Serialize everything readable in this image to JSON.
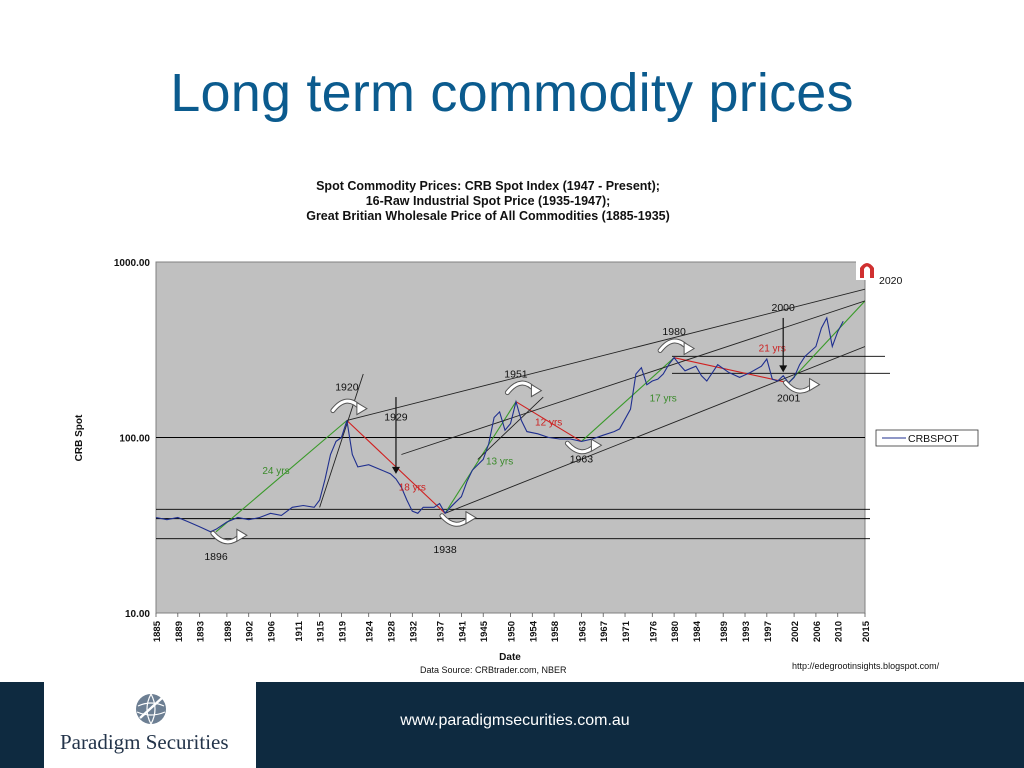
{
  "slide": {
    "title": "Long term commodity prices"
  },
  "chart_data": {
    "type": "line",
    "title_lines": [
      "Spot Commodity Prices:  CRB Spot Index (1947 - Present);",
      "16-Raw Industrial Spot Price (1935-1947);",
      "Great Britian Wholesale Price of All Commodities (1885-1935)"
    ],
    "xlabel": "Date",
    "ylabel": "CRB Spot",
    "y_scale": "log",
    "ylim": [
      10,
      1000
    ],
    "xlim": [
      1885,
      2015
    ],
    "y_ticks": [
      "10.00",
      "100.00",
      "1000.00"
    ],
    "x_ticks": [
      "1885",
      "1889",
      "1893",
      "1898",
      "1902",
      "1906",
      "1911",
      "1915",
      "1919",
      "1924",
      "1928",
      "1932",
      "1937",
      "1941",
      "1945",
      "1950",
      "1954",
      "1958",
      "1963",
      "1967",
      "1971",
      "1976",
      "1980",
      "1984",
      "1989",
      "1993",
      "1997",
      "2002",
      "2006",
      "2010",
      "2015"
    ],
    "legend": {
      "label": "CRBSPOT",
      "position": "right"
    },
    "series": [
      {
        "name": "CRBSPOT",
        "color": "#1f2f8f",
        "x": [
          1885,
          1887,
          1889,
          1891,
          1893,
          1895,
          1896,
          1898,
          1900,
          1902,
          1904,
          1906,
          1908,
          1910,
          1912,
          1914,
          1915,
          1916,
          1917,
          1918,
          1919,
          1920,
          1921,
          1922,
          1924,
          1926,
          1928,
          1929,
          1930,
          1931,
          1932,
          1933,
          1934,
          1936,
          1937,
          1938,
          1939,
          1940,
          1941,
          1942,
          1943,
          1944,
          1945,
          1946,
          1947,
          1948,
          1949,
          1950,
          1951,
          1952,
          1953,
          1955,
          1957,
          1959,
          1961,
          1963,
          1965,
          1967,
          1969,
          1970,
          1972,
          1973,
          1974,
          1975,
          1976,
          1977,
          1978,
          1979,
          1980,
          1981,
          1982,
          1984,
          1985,
          1986,
          1988,
          1990,
          1992,
          1994,
          1996,
          1997,
          1998,
          1999,
          2000,
          2001,
          2002,
          2003,
          2004,
          2006,
          2007,
          2008,
          2009,
          2010,
          2011
        ],
        "y": [
          35,
          34,
          35,
          33,
          31,
          29,
          30,
          33,
          35,
          34,
          35,
          37,
          36,
          40,
          41,
          40,
          44,
          58,
          80,
          95,
          100,
          125,
          80,
          68,
          70,
          66,
          62,
          58,
          52,
          44,
          38,
          37,
          40,
          40,
          42,
          37,
          40,
          43,
          46,
          56,
          65,
          70,
          75,
          92,
          130,
          140,
          110,
          120,
          160,
          125,
          108,
          105,
          100,
          98,
          98,
          95,
          98,
          103,
          108,
          112,
          145,
          230,
          250,
          200,
          210,
          215,
          230,
          260,
          285,
          260,
          240,
          255,
          225,
          210,
          260,
          235,
          220,
          235,
          255,
          280,
          215,
          210,
          225,
          205,
          220,
          260,
          290,
          330,
          420,
          480,
          330,
          400,
          460
        ]
      }
    ],
    "trend_annotations": [
      {
        "label": "24 yrs",
        "color": "#3a8a2a"
      },
      {
        "label": "18 yrs",
        "color": "#cc2020"
      },
      {
        "label": "13 yrs",
        "color": "#3a8a2a"
      },
      {
        "label": "12 yrs",
        "color": "#cc2020"
      },
      {
        "label": "17 yrs",
        "color": "#3a8a2a"
      },
      {
        "label": "21 yrs",
        "color": "#cc2020"
      }
    ],
    "year_annotations": [
      "1896",
      "1920",
      "1929",
      "1938",
      "1951",
      "1963",
      "1980",
      "2000",
      "2001",
      "2020"
    ],
    "data_source": "Data Source:  CRBtrader.com, NBER",
    "credit_url": "http://edegrootinsights.blogspot.com/"
  },
  "footer": {
    "brand": "Paradigm Securities",
    "url": "www.paradigmsecurities.com.au"
  }
}
